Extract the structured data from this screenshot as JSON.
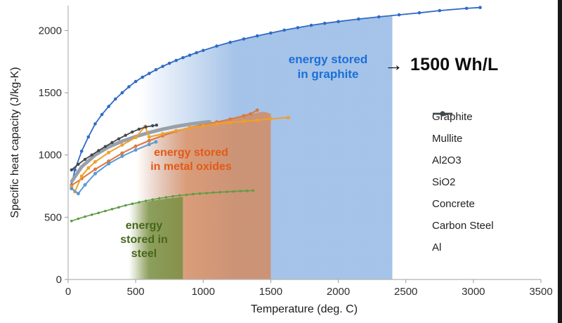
{
  "chart_data": {
    "type": "line",
    "title": "",
    "xlabel": "Temperature (deg. C)",
    "ylabel": "Specific heat capacity (J/kg-K)",
    "xlim": [
      0,
      3500
    ],
    "ylim": [
      0,
      2200
    ],
    "xticks": [
      0,
      500,
      1000,
      1500,
      2000,
      2500,
      3000,
      3500
    ],
    "yticks": [
      0,
      500,
      1000,
      1500,
      2000
    ],
    "grid": false,
    "legend_position": "right",
    "background": "#ffffff",
    "series": [
      {
        "name": "Graphite",
        "color": "#2f6bc6",
        "width": 1.8,
        "r": 2.3,
        "points": [
          [
            25,
            760
          ],
          [
            50,
            880
          ],
          [
            100,
            1030
          ],
          [
            150,
            1145
          ],
          [
            200,
            1250
          ],
          [
            250,
            1325
          ],
          [
            300,
            1390
          ],
          [
            350,
            1450
          ],
          [
            400,
            1500
          ],
          [
            450,
            1548
          ],
          [
            500,
            1590
          ],
          [
            550,
            1625
          ],
          [
            600,
            1655
          ],
          [
            650,
            1685
          ],
          [
            700,
            1712
          ],
          [
            750,
            1737
          ],
          [
            800,
            1760
          ],
          [
            850,
            1782
          ],
          [
            900,
            1802
          ],
          [
            950,
            1822
          ],
          [
            1000,
            1840
          ],
          [
            1100,
            1875
          ],
          [
            1200,
            1905
          ],
          [
            1300,
            1932
          ],
          [
            1400,
            1957
          ],
          [
            1500,
            1980
          ],
          [
            1600,
            2003
          ],
          [
            1700,
            2023
          ],
          [
            1800,
            2042
          ],
          [
            1900,
            2058
          ],
          [
            2000,
            2072
          ],
          [
            2150,
            2092
          ],
          [
            2300,
            2110
          ],
          [
            2450,
            2126
          ],
          [
            2600,
            2142
          ],
          [
            2750,
            2160
          ],
          [
            2950,
            2178
          ],
          [
            3050,
            2185
          ]
        ]
      },
      {
        "name": "Mullite",
        "color": "#d97941",
        "width": 2,
        "r": 2.5,
        "points": [
          [
            25,
            755
          ],
          [
            100,
            810
          ],
          [
            200,
            885
          ],
          [
            300,
            950
          ],
          [
            400,
            1015
          ],
          [
            500,
            1070
          ],
          [
            600,
            1115
          ],
          [
            700,
            1155
          ],
          [
            800,
            1190
          ],
          [
            900,
            1220
          ],
          [
            1000,
            1245
          ],
          [
            1100,
            1265
          ],
          [
            1200,
            1288
          ],
          [
            1300,
            1315
          ],
          [
            1350,
            1330
          ],
          [
            1400,
            1360
          ]
        ]
      },
      {
        "name": "Al2O3",
        "color": "#9aa0a8",
        "width": 5,
        "r": 2,
        "points": [
          [
            25,
            785
          ],
          [
            100,
            905
          ],
          [
            200,
            1000
          ],
          [
            300,
            1065
          ],
          [
            400,
            1110
          ],
          [
            500,
            1148
          ],
          [
            600,
            1180
          ],
          [
            700,
            1208
          ],
          [
            800,
            1230
          ],
          [
            900,
            1248
          ],
          [
            1000,
            1262
          ],
          [
            1050,
            1268
          ]
        ]
      },
      {
        "name": "SiO2",
        "color": "#f0a02c",
        "width": 2,
        "r": 2.5,
        "points": [
          [
            25,
            745
          ],
          [
            50,
            705
          ],
          [
            100,
            830
          ],
          [
            150,
            895
          ],
          [
            200,
            945
          ],
          [
            300,
            1020
          ],
          [
            400,
            1080
          ],
          [
            500,
            1140
          ],
          [
            570,
            1230
          ],
          [
            600,
            1145
          ],
          [
            700,
            1170
          ],
          [
            800,
            1195
          ],
          [
            900,
            1218
          ],
          [
            1000,
            1235
          ],
          [
            1100,
            1250
          ],
          [
            1200,
            1260
          ],
          [
            1300,
            1270
          ],
          [
            1400,
            1280
          ],
          [
            1500,
            1290
          ],
          [
            1630,
            1300
          ]
        ]
      },
      {
        "name": "Concrete",
        "color": "#5b9bd5",
        "width": 2,
        "r": 2.5,
        "points": [
          [
            25,
            730
          ],
          [
            75,
            690
          ],
          [
            125,
            760
          ],
          [
            200,
            850
          ],
          [
            300,
            930
          ],
          [
            400,
            990
          ],
          [
            500,
            1040
          ],
          [
            600,
            1085
          ],
          [
            650,
            1105
          ]
        ]
      },
      {
        "name": "Carbon Steel",
        "color": "#5f9c46",
        "width": 1.6,
        "r": 1.8,
        "points": [
          [
            25,
            470
          ],
          [
            75,
            488
          ],
          [
            125,
            505
          ],
          [
            175,
            520
          ],
          [
            225,
            535
          ],
          [
            275,
            550
          ],
          [
            325,
            565
          ],
          [
            375,
            580
          ],
          [
            425,
            595
          ],
          [
            475,
            608
          ],
          [
            525,
            620
          ],
          [
            575,
            632
          ],
          [
            625,
            642
          ],
          [
            675,
            652
          ],
          [
            725,
            660
          ],
          [
            775,
            668
          ],
          [
            825,
            675
          ],
          [
            875,
            680
          ],
          [
            925,
            686
          ],
          [
            975,
            690
          ],
          [
            1025,
            694
          ],
          [
            1075,
            698
          ],
          [
            1125,
            701
          ],
          [
            1175,
            704
          ],
          [
            1225,
            707
          ],
          [
            1275,
            710
          ],
          [
            1325,
            712
          ],
          [
            1370,
            715
          ]
        ]
      },
      {
        "name": "Al",
        "color": "#44484e",
        "width": 1.8,
        "r": 2.2,
        "points": [
          [
            25,
            880
          ],
          [
            75,
            925
          ],
          [
            125,
            965
          ],
          [
            175,
            1000
          ],
          [
            225,
            1035
          ],
          [
            275,
            1068
          ],
          [
            325,
            1100
          ],
          [
            375,
            1130
          ],
          [
            425,
            1158
          ],
          [
            475,
            1185
          ],
          [
            525,
            1208
          ],
          [
            575,
            1225
          ],
          [
            625,
            1235
          ],
          [
            655,
            1240
          ]
        ]
      }
    ],
    "regions": [
      {
        "name": "graphite-energy-region",
        "color": "#8fb4e3",
        "opacity": 0.8,
        "points": [
          [
            520,
            0
          ],
          [
            520,
            1600
          ],
          [
            600,
            1655
          ],
          [
            700,
            1712
          ],
          [
            800,
            1760
          ],
          [
            900,
            1802
          ],
          [
            1000,
            1840
          ],
          [
            1200,
            1905
          ],
          [
            1400,
            1957
          ],
          [
            1600,
            2003
          ],
          [
            1800,
            2042
          ],
          [
            2000,
            2072
          ],
          [
            2200,
            2098
          ],
          [
            2400,
            2118
          ],
          [
            2400,
            0
          ]
        ]
      },
      {
        "name": "metal-oxide-energy-region",
        "color": "#dd7f45",
        "opacity": 0.7,
        "points": [
          [
            500,
            0
          ],
          [
            500,
            1085
          ],
          [
            600,
            1130
          ],
          [
            700,
            1168
          ],
          [
            800,
            1198
          ],
          [
            900,
            1225
          ],
          [
            1000,
            1248
          ],
          [
            1100,
            1268
          ],
          [
            1200,
            1290
          ],
          [
            1300,
            1315
          ],
          [
            1400,
            1340
          ],
          [
            1450,
            1348
          ],
          [
            1500,
            1332
          ],
          [
            1500,
            0
          ]
        ]
      },
      {
        "name": "steel-energy-region",
        "color": "#6f8c38",
        "opacity": 0.78,
        "points": [
          [
            450,
            0
          ],
          [
            450,
            602
          ],
          [
            550,
            620
          ],
          [
            650,
            638
          ],
          [
            750,
            652
          ],
          [
            850,
            664
          ],
          [
            850,
            0
          ]
        ]
      }
    ],
    "annotations": [
      {
        "id": "graphite-annotation",
        "text": "energy stored\nin graphite",
        "color": "#1b6fd8",
        "x": 467,
        "y": 95,
        "size": 17
      },
      {
        "id": "metal-oxides-annotation",
        "text": "energy stored\nin metal oxides",
        "color": "#e25a18",
        "x": 272,
        "y": 228,
        "size": 16
      },
      {
        "id": "steel-annotation",
        "text": "energy\nstored in\nsteel",
        "color": "#47661c",
        "x": 205,
        "y": 342,
        "size": 16
      }
    ],
    "callout": {
      "arrow": "→",
      "text": "1500 Wh/L"
    }
  }
}
